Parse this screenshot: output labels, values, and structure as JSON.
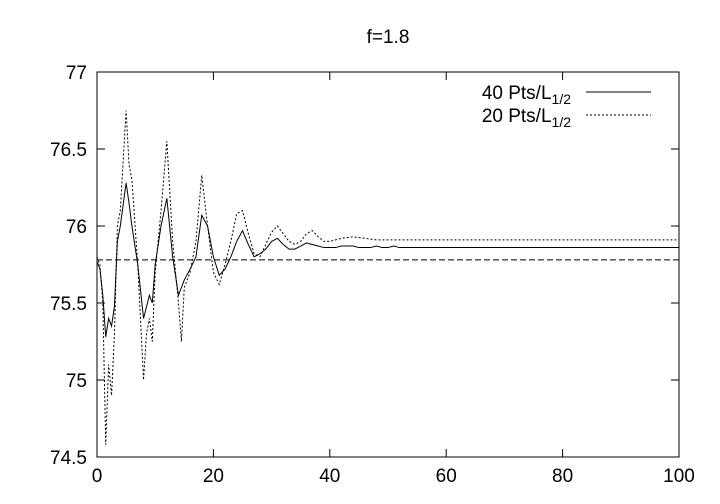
{
  "chart_data": {
    "type": "line",
    "title": "f=1.8",
    "xlabel": "",
    "ylabel": "",
    "xlim": [
      0,
      100
    ],
    "ylim": [
      74.5,
      77
    ],
    "xticks": [
      "0",
      "20",
      "40",
      "60",
      "80",
      "100"
    ],
    "yticks": [
      "74.5",
      "75",
      "75.5",
      "76",
      "76.5",
      "77"
    ],
    "grid": false,
    "legend_position": "top-right",
    "series": [
      {
        "name": "40 Pts/L",
        "name_subscript": "1/2",
        "style": "solid",
        "color": "#000000",
        "x": [
          0,
          0.5,
          1,
          1.5,
          2,
          2.5,
          3,
          3.5,
          4,
          5,
          5.5,
          6,
          7,
          8,
          9,
          9.5,
          10,
          11,
          12,
          13,
          14,
          15,
          16,
          17,
          18,
          19,
          20,
          21,
          22,
          23,
          24,
          25,
          26,
          27,
          28,
          29,
          30,
          31,
          32,
          33,
          34,
          35,
          36,
          37,
          38,
          39,
          40,
          41,
          42,
          43,
          44,
          45,
          46,
          47,
          48,
          49,
          50,
          51,
          52,
          53,
          54,
          60,
          70,
          80,
          90,
          100
        ],
        "y": [
          75.77,
          75.72,
          75.55,
          75.28,
          75.4,
          75.35,
          75.48,
          75.9,
          76.0,
          76.28,
          76.15,
          76.0,
          75.75,
          75.4,
          75.55,
          75.5,
          75.75,
          76.0,
          76.18,
          75.8,
          75.55,
          75.65,
          75.72,
          75.8,
          76.07,
          76.0,
          75.8,
          75.68,
          75.72,
          75.8,
          75.9,
          75.97,
          75.88,
          75.8,
          75.82,
          75.85,
          75.9,
          75.92,
          75.88,
          75.85,
          75.85,
          75.87,
          75.89,
          75.88,
          75.87,
          75.86,
          75.86,
          75.86,
          75.87,
          75.87,
          75.87,
          75.86,
          75.86,
          75.86,
          75.87,
          75.86,
          75.86,
          75.87,
          75.86,
          75.86,
          75.86,
          75.86,
          75.86,
          75.86,
          75.86,
          75.86
        ]
      },
      {
        "name": "20 Pts/L",
        "name_subscript": "1/2",
        "style": "dotted",
        "color": "#000000",
        "x": [
          0,
          0.5,
          1,
          1.5,
          2,
          2.5,
          3,
          3.5,
          4,
          5,
          5.5,
          6,
          7,
          8,
          8.5,
          9,
          9.5,
          10,
          11,
          12,
          13,
          14,
          14.5,
          15,
          16,
          17,
          18,
          19,
          20,
          21,
          22,
          23,
          24,
          25,
          26,
          27,
          28,
          29,
          30,
          31,
          32,
          33,
          34,
          35,
          36,
          37,
          38,
          39,
          40,
          42,
          44,
          46,
          48,
          50,
          52,
          55,
          60,
          70,
          80,
          90,
          100
        ],
        "y": [
          75.8,
          75.75,
          75.5,
          74.58,
          75.1,
          74.9,
          75.3,
          76.0,
          76.1,
          76.75,
          76.4,
          76.3,
          75.75,
          75.0,
          75.3,
          75.4,
          75.25,
          75.7,
          76.1,
          76.55,
          75.9,
          75.5,
          75.25,
          75.6,
          75.7,
          75.9,
          76.33,
          76.0,
          75.7,
          75.62,
          75.75,
          75.9,
          76.08,
          76.1,
          75.95,
          75.82,
          75.8,
          75.88,
          75.96,
          76.0,
          75.95,
          75.9,
          75.88,
          75.9,
          75.95,
          75.97,
          75.93,
          75.9,
          75.9,
          75.92,
          75.93,
          75.92,
          75.91,
          75.91,
          75.91,
          75.91,
          75.91,
          75.91,
          75.91,
          75.91,
          75.91
        ]
      },
      {
        "name": "",
        "style": "dashed",
        "color": "#000000",
        "x": [
          0,
          100
        ],
        "y": [
          75.78,
          75.78
        ]
      }
    ]
  }
}
